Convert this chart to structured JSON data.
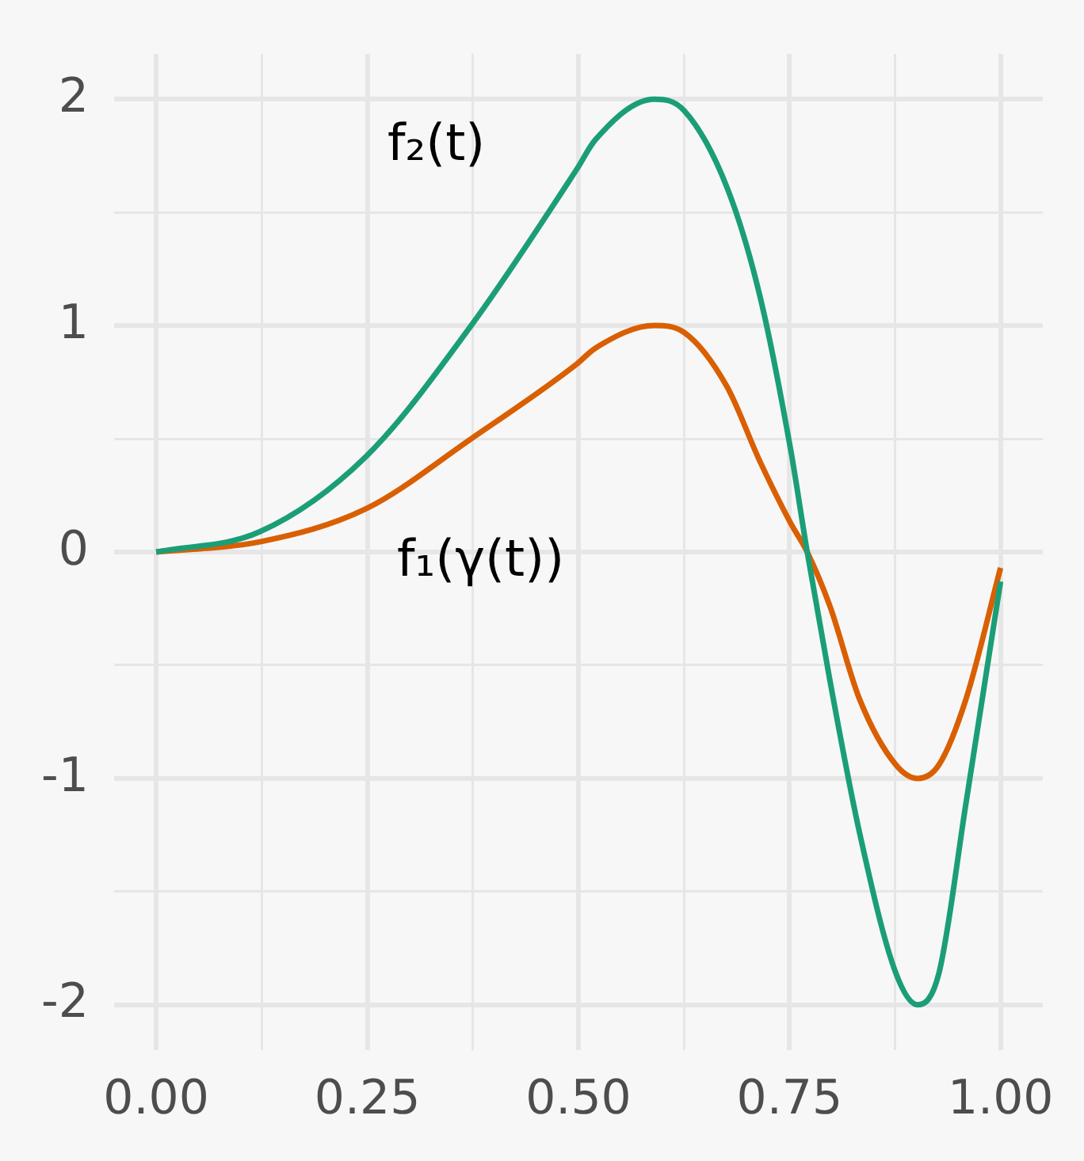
{
  "chart_data": {
    "type": "line",
    "xlim": [
      -0.05,
      1.05
    ],
    "ylim": [
      -2.2,
      2.2
    ],
    "xticks": [
      {
        "value": 0,
        "label": "0.00"
      },
      {
        "value": 0.125,
        "label": null
      },
      {
        "value": 0.25,
        "label": "0.25"
      },
      {
        "value": 0.375,
        "label": null
      },
      {
        "value": 0.5,
        "label": "0.50"
      },
      {
        "value": 0.625,
        "label": null
      },
      {
        "value": 0.75,
        "label": "0.75"
      },
      {
        "value": 0.875,
        "label": null
      },
      {
        "value": 1,
        "label": "1.00"
      }
    ],
    "yticks": [
      -2,
      {
        "value": -1.5,
        "label": null
      },
      -1,
      {
        "value": -0.5,
        "label": null
      },
      0,
      {
        "value": 0.5,
        "label": null
      },
      1,
      {
        "value": 1.5,
        "label": null
      },
      2
    ],
    "grid": true,
    "legend": false,
    "marker": "none",
    "line_style": "solid",
    "series": [
      {
        "name": "f₂(t)",
        "color": "#1b9e77",
        "x": [
          0,
          0.123,
          0.248,
          0.373,
          0.498,
          0.52,
          0.59,
          0.625,
          0.676,
          0.715,
          0.751,
          0.771,
          0.798,
          0.833,
          0.876,
          0.902,
          0.927,
          0.959,
          1.0
        ],
        "values": [
          0,
          0.09,
          0.42,
          1.0,
          1.69,
          1.82,
          2,
          1.95,
          1.61,
          1.13,
          0.46,
          0,
          -0.57,
          -1.24,
          -1.86,
          -2,
          -1.86,
          -1.11,
          -0.13
        ]
      },
      {
        "name": "f₁(γ(t))",
        "color": "#d95f02",
        "x": [
          0,
          0.123,
          0.248,
          0.373,
          0.498,
          0.52,
          0.59,
          0.625,
          0.676,
          0.715,
          0.751,
          0.771,
          0.798,
          0.833,
          0.876,
          0.902,
          0.927,
          0.959,
          1.0
        ],
        "values": [
          0,
          0.045,
          0.19,
          0.5,
          0.83,
          0.9,
          1,
          0.97,
          0.73,
          0.4,
          0.13,
          0,
          -0.24,
          -0.65,
          -0.94,
          -1,
          -0.94,
          -0.65,
          -0.07
        ]
      }
    ]
  }
}
